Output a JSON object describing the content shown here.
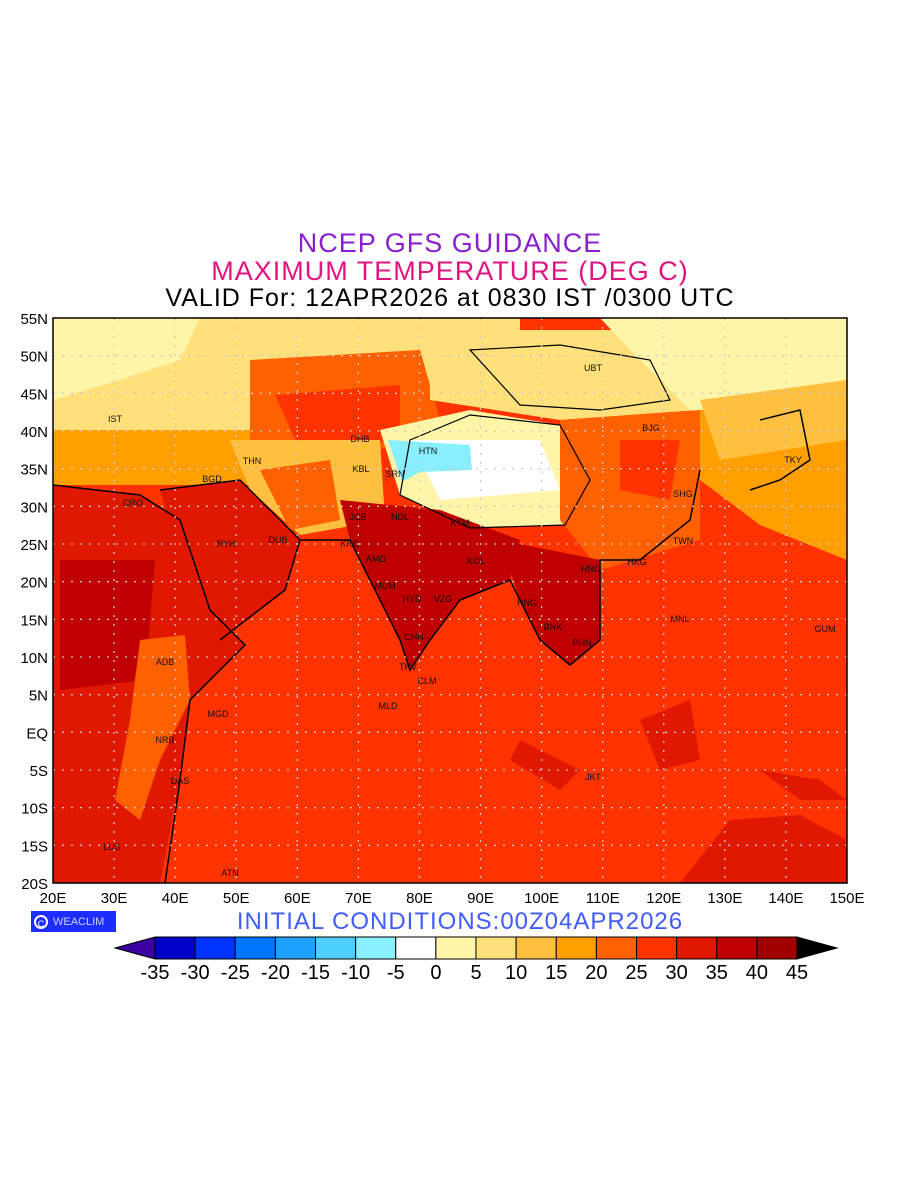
{
  "header": {
    "line1": "NCEP GFS GUIDANCE",
    "line2": "MAXIMUM TEMPERATURE (DEG C)",
    "line3": "VALID For: 12APR2026 at 0830 IST /0300 UTC"
  },
  "footer": {
    "initial_conditions": "INITIAL CONDITIONS:00Z04APR2026",
    "logo_text": "WEACLIM"
  },
  "map": {
    "lat_labels": [
      "55N",
      "50N",
      "45N",
      "40N",
      "35N",
      "30N",
      "25N",
      "20N",
      "15N",
      "10N",
      "5N",
      "EQ",
      "5S",
      "10S",
      "15S",
      "20S"
    ],
    "lon_labels": [
      "20E",
      "30E",
      "40E",
      "50E",
      "60E",
      "70E",
      "80E",
      "90E",
      "100E",
      "110E",
      "120E",
      "130E",
      "140E",
      "150E"
    ],
    "cities": [
      "IST",
      "CRO",
      "BGD",
      "THN",
      "RYH",
      "DUB",
      "DHB",
      "KBL",
      "SRN",
      "HTN",
      "JCB",
      "NDL",
      "KRC",
      "AMD",
      "MUM",
      "HYD",
      "VZG",
      "KTM",
      "KOL",
      "CHN",
      "TRV",
      "CLM",
      "MLD",
      "ADB",
      "MGD",
      "NRB",
      "DAS",
      "LUS",
      "ATN",
      "UBT",
      "BJG",
      "SHG",
      "TKY",
      "TWN",
      "HKG",
      "HNO",
      "RNG",
      "BNK",
      "PHN",
      "MNL",
      "GUM",
      "JKT"
    ]
  },
  "colorbar": {
    "labels": [
      "-35",
      "-30",
      "-25",
      "-20",
      "-15",
      "-10",
      "-5",
      "0",
      "5",
      "10",
      "15",
      "20",
      "25",
      "30",
      "35",
      "40",
      "45"
    ],
    "under_color": "#3a00a0",
    "over_color": "#000000",
    "colors": [
      "#0000c8",
      "#0033ff",
      "#0077ff",
      "#1ea0ff",
      "#4ccfff",
      "#88efff",
      "#ffffff",
      "#fff5a8",
      "#ffe07a",
      "#ffbf3f",
      "#ff9f00",
      "#ff6000",
      "#ff3300",
      "#e01800",
      "#c00000",
      "#a00000"
    ]
  }
}
